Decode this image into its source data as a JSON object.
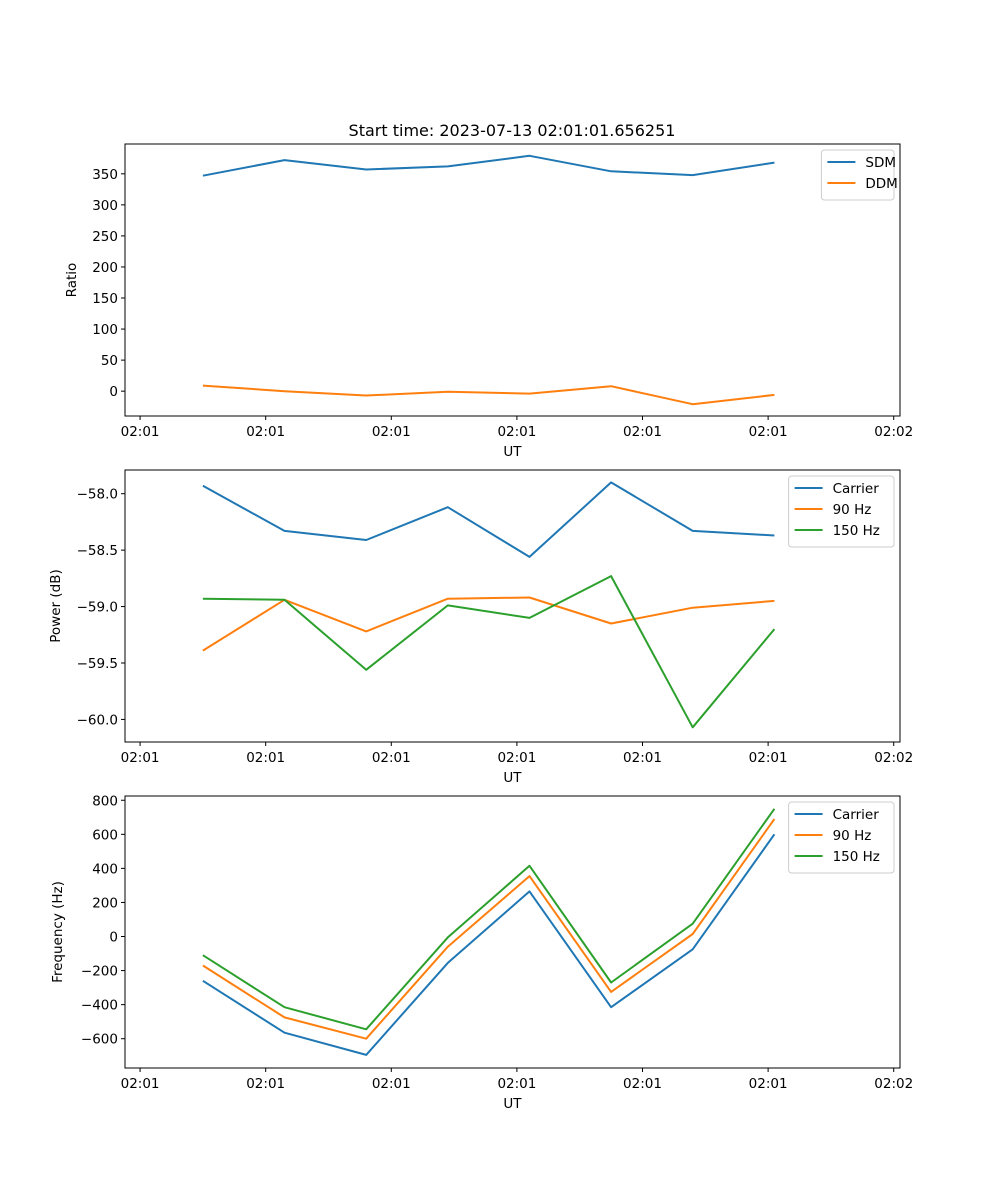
{
  "figure_title": "Start time: 2023-07-13 02:01:01.656251",
  "colors": {
    "blue": "#1f77b4",
    "orange": "#ff7f0e",
    "green": "#2ca02c"
  },
  "chart_data": [
    {
      "type": "line",
      "name": "ratio",
      "xlabel": "UT",
      "ylabel": "Ratio",
      "x_tick_labels": [
        "02:01",
        "02:01",
        "02:01",
        "02:01",
        "02:01",
        "02:01",
        "02:02"
      ],
      "x_tick_positions": [
        0,
        1,
        2,
        3,
        4,
        5,
        6
      ],
      "xlim": [
        -0.12,
        6.05
      ],
      "ylim": [
        -40,
        398
      ],
      "y_ticks": [
        0,
        50,
        100,
        150,
        200,
        250,
        300,
        350
      ],
      "y_tick_labels": [
        "0",
        "50",
        "100",
        "150",
        "200",
        "250",
        "300",
        "350"
      ],
      "legend_position": "top-right",
      "x": [
        0.5,
        1.15,
        1.8,
        2.45,
        3.1,
        3.75,
        4.4,
        5.05
      ],
      "series": [
        {
          "name": "SDM",
          "color": "#1f77b4",
          "values": [
            347,
            372,
            357,
            362,
            379,
            354,
            348,
            368
          ]
        },
        {
          "name": "DDM",
          "color": "#ff7f0e",
          "values": [
            9,
            0,
            -7,
            -1,
            -4,
            8,
            -21,
            -6
          ]
        }
      ]
    },
    {
      "type": "line",
      "name": "power",
      "xlabel": "UT",
      "ylabel": "Power (dB)",
      "x_tick_labels": [
        "02:01",
        "02:01",
        "02:01",
        "02:01",
        "02:01",
        "02:01",
        "02:02"
      ],
      "x_tick_positions": [
        0,
        1,
        2,
        3,
        4,
        5,
        6
      ],
      "xlim": [
        -0.12,
        6.05
      ],
      "ylim": [
        -60.2,
        -57.79
      ],
      "y_ticks": [
        -60.0,
        -59.5,
        -59.0,
        -58.5,
        -58.0
      ],
      "y_tick_labels": [
        "−60.0",
        "−59.5",
        "−59.0",
        "−58.5",
        "−58.0"
      ],
      "legend_position": "top-right",
      "x": [
        0.5,
        1.15,
        1.8,
        2.45,
        3.1,
        3.75,
        4.4,
        5.05
      ],
      "series": [
        {
          "name": "Carrier",
          "color": "#1f77b4",
          "values": [
            -57.93,
            -58.33,
            -58.41,
            -58.12,
            -58.56,
            -57.9,
            -58.33,
            -58.37
          ]
        },
        {
          "name": "90 Hz",
          "color": "#ff7f0e",
          "values": [
            -59.39,
            -58.94,
            -59.22,
            -58.93,
            -58.92,
            -59.15,
            -59.01,
            -58.95
          ]
        },
        {
          "name": "150 Hz",
          "color": "#2ca02c",
          "values": [
            -58.93,
            -58.94,
            -59.56,
            -58.99,
            -59.1,
            -58.73,
            -60.07,
            -59.2
          ]
        }
      ]
    },
    {
      "type": "line",
      "name": "frequency",
      "xlabel": "UT",
      "ylabel": "Frequency (Hz)",
      "x_tick_labels": [
        "02:01",
        "02:01",
        "02:01",
        "02:01",
        "02:01",
        "02:01",
        "02:02"
      ],
      "x_tick_positions": [
        0,
        1,
        2,
        3,
        4,
        5,
        6
      ],
      "xlim": [
        -0.12,
        6.05
      ],
      "ylim": [
        -772,
        825
      ],
      "y_ticks": [
        -600,
        -400,
        -200,
        0,
        200,
        400,
        600,
        800
      ],
      "y_tick_labels": [
        "−600",
        "−400",
        "−200",
        "0",
        "200",
        "400",
        "600",
        "800"
      ],
      "legend_position": "top-right",
      "x": [
        0.5,
        1.15,
        1.8,
        2.45,
        3.1,
        3.75,
        4.4,
        5.05
      ],
      "series": [
        {
          "name": "Carrier",
          "color": "#1f77b4",
          "values": [
            -260,
            -565,
            -695,
            -155,
            265,
            -415,
            -75,
            600
          ]
        },
        {
          "name": "90 Hz",
          "color": "#ff7f0e",
          "values": [
            -170,
            -475,
            -600,
            -60,
            355,
            -325,
            15,
            690
          ]
        },
        {
          "name": "150 Hz",
          "color": "#2ca02c",
          "values": [
            -110,
            -415,
            -545,
            -5,
            415,
            -270,
            75,
            750
          ]
        }
      ]
    }
  ]
}
